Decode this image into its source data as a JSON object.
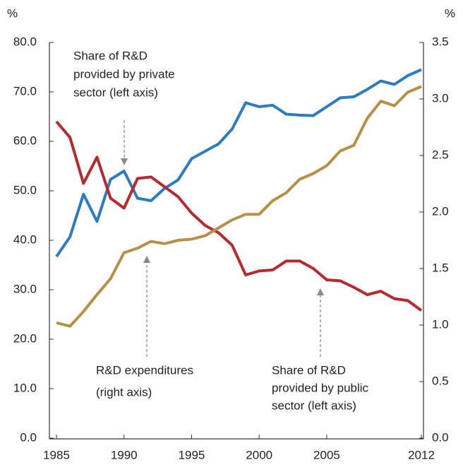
{
  "chart_data": {
    "type": "line",
    "y_label": "%",
    "y2_label": "%",
    "x": [
      1985,
      1986,
      1987,
      1988,
      1989,
      1990,
      1991,
      1992,
      1993,
      1994,
      1995,
      1996,
      1997,
      1998,
      1999,
      2000,
      2001,
      2002,
      2003,
      2004,
      2005,
      2006,
      2007,
      2008,
      2009,
      2010,
      2011,
      2012
    ],
    "series": [
      {
        "name": "Share of R&D provided by private sector (left axis)",
        "color": "#2e7bbf",
        "values": [
          36.7,
          40.7,
          49.3,
          43.8,
          52.3,
          54.0,
          48.5,
          48.0,
          50.5,
          52.2,
          56.5,
          58.0,
          59.5,
          62.5,
          67.8,
          67.0,
          67.3,
          65.5,
          65.3,
          65.2,
          67.0,
          68.8,
          69.0,
          70.5,
          72.2,
          71.5,
          73.3,
          74.5
        ]
      },
      {
        "name": "Share of R&D provided by public sector (left axis)",
        "color": "#b5292f",
        "values": [
          64.0,
          60.8,
          51.5,
          56.8,
          48.5,
          46.5,
          52.5,
          52.8,
          50.8,
          48.8,
          45.5,
          43.0,
          41.5,
          39.0,
          33.0,
          33.8,
          34.0,
          35.8,
          35.8,
          34.3,
          32.0,
          31.8,
          30.5,
          29.0,
          29.7,
          28.2,
          27.8,
          25.8
        ]
      },
      {
        "name": "R&D expenditures (right axis)",
        "color": "#b88f47",
        "axis": "y2",
        "values": [
          1.02,
          0.99,
          1.12,
          1.27,
          1.41,
          1.64,
          1.68,
          1.74,
          1.72,
          1.75,
          1.76,
          1.79,
          1.86,
          1.93,
          1.98,
          1.98,
          2.1,
          2.17,
          2.29,
          2.34,
          2.41,
          2.54,
          2.59,
          2.83,
          2.98,
          2.94,
          3.06,
          3.11
        ]
      }
    ],
    "annotations": [
      {
        "lines": [
          "Share of R&D",
          "provided by private",
          "sector (left axis)"
        ]
      },
      {
        "lines": [
          "R&D expenditures",
          "(right axis)"
        ]
      },
      {
        "lines": [
          "Share of R&D",
          "provided by public",
          "sector (left axis)"
        ]
      }
    ],
    "xlim": [
      1985,
      2012
    ],
    "xticks": [
      1985,
      1990,
      1995,
      2000,
      2005,
      2012
    ],
    "ylim": [
      0,
      80
    ],
    "yticks": [
      {
        "value": 0,
        "label": "0.0"
      },
      {
        "value": 10,
        "label": "10.0"
      },
      {
        "value": 20,
        "label": "20.0"
      },
      {
        "value": 30,
        "label": "30.0"
      },
      {
        "value": 40,
        "label": "40.0"
      },
      {
        "value": 50,
        "label": "50.0"
      },
      {
        "value": 60,
        "label": "60.0"
      },
      {
        "value": 70,
        "label": "70.0"
      },
      {
        "value": 80,
        "label": "80.0"
      }
    ],
    "y2lim": [
      0,
      3.5
    ],
    "y2ticks": [
      {
        "value": 0,
        "label": "0.0"
      },
      0.5,
      {
        "value": 1,
        "label": "1.0"
      },
      1.5,
      {
        "value": 2,
        "label": "2.0"
      },
      2.5,
      {
        "value": 3,
        "label": "3.0"
      },
      3.5
    ]
  }
}
